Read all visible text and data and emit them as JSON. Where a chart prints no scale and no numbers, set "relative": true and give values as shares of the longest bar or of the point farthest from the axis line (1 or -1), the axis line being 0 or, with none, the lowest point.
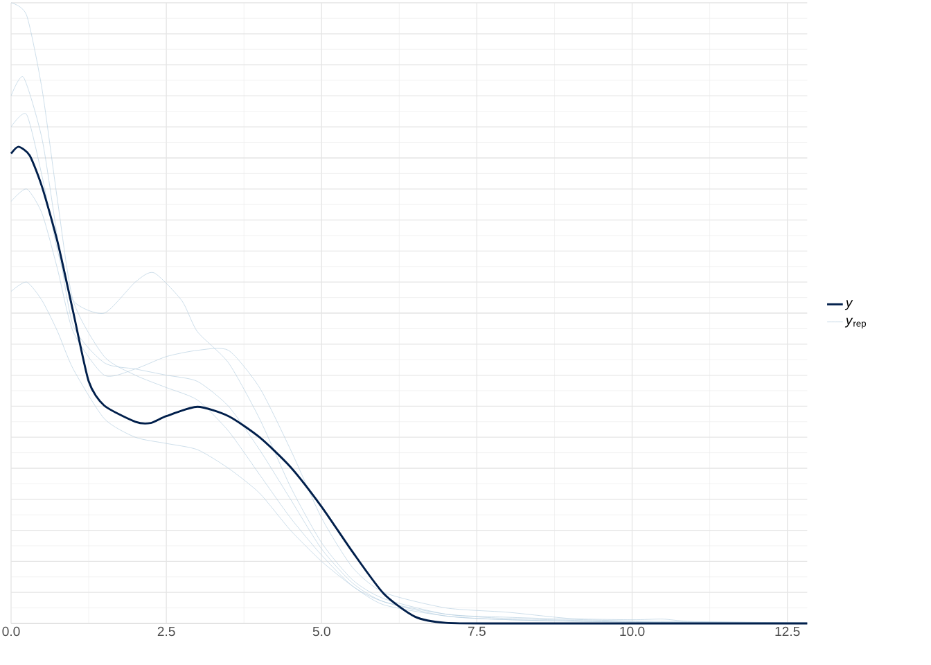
{
  "chart_data": {
    "type": "line",
    "relative": true,
    "xlim": [
      0,
      12.82
    ],
    "xticks": [
      {
        "value": 0,
        "label": "0.0"
      },
      {
        "value": 2.5,
        "label": "2.5"
      },
      {
        "value": 5,
        "label": "5.0"
      },
      {
        "value": 7.5,
        "label": "7.5"
      },
      {
        "value": 10,
        "label": "10.0"
      },
      {
        "value": 12.5,
        "label": "12.5"
      }
    ],
    "grid": true,
    "legend": "right",
    "tick_labels": "x",
    "series": [
      {
        "name": "*y*$_{rep}$",
        "color": "#b3cde0",
        "x": [
          0,
          0.25,
          0.5,
          0.75,
          1,
          1.5,
          2,
          2.5,
          3,
          3.5,
          4,
          4.5,
          5,
          5.5,
          6,
          7,
          8,
          10,
          12.82
        ],
        "values": [
          1.0,
          0.98,
          0.86,
          0.68,
          0.52,
          0.43,
          0.4,
          0.38,
          0.36,
          0.31,
          0.24,
          0.17,
          0.11,
          0.06,
          0.035,
          0.015,
          0.008,
          0.003,
          0
        ]
      },
      {
        "color": "#b3cde0",
        "x": [
          0,
          0.25,
          0.5,
          0.75,
          1,
          1.5,
          2,
          2.5,
          3,
          3.5,
          4,
          4.5,
          5,
          5.5,
          6,
          7,
          8,
          10,
          12.82
        ],
        "values": [
          0.535,
          0.55,
          0.52,
          0.47,
          0.41,
          0.33,
          0.3,
          0.29,
          0.28,
          0.25,
          0.21,
          0.15,
          0.1,
          0.06,
          0.03,
          0.012,
          0.006,
          0.002,
          0
        ]
      },
      {
        "color": "#b3cde0",
        "x": [
          0,
          0.25,
          0.5,
          0.75,
          1,
          1.5,
          2,
          2.3,
          2.75,
          3,
          3.5,
          4,
          4.5,
          5,
          5.5,
          6,
          7,
          8,
          10,
          12.82
        ],
        "values": [
          0.8,
          0.82,
          0.72,
          0.6,
          0.52,
          0.5,
          0.55,
          0.565,
          0.52,
          0.47,
          0.42,
          0.33,
          0.22,
          0.13,
          0.07,
          0.04,
          0.015,
          0.01,
          0.004,
          0.001
        ]
      },
      {
        "color": "#b3cde0",
        "x": [
          0,
          0.25,
          0.5,
          0.75,
          1,
          1.5,
          2,
          2.5,
          3,
          3.5,
          4,
          4.5,
          5,
          5.5,
          6,
          7,
          8,
          9,
          10,
          10.5,
          11,
          12.82
        ],
        "values": [
          0.68,
          0.7,
          0.66,
          0.57,
          0.47,
          0.4,
          0.41,
          0.43,
          0.44,
          0.44,
          0.38,
          0.28,
          0.17,
          0.09,
          0.05,
          0.025,
          0.018,
          0.008,
          0.006,
          0.007,
          0.003,
          0.001
        ]
      },
      {
        "color": "#b3cde0",
        "x": [
          0,
          0.2,
          0.5,
          0.75,
          1,
          1.5,
          2,
          2.5,
          3,
          3.5,
          4,
          4.5,
          5,
          5.5,
          6,
          7,
          8,
          10,
          12.82
        ],
        "values": [
          0.85,
          0.88,
          0.78,
          0.62,
          0.48,
          0.42,
          0.41,
          0.4,
          0.39,
          0.35,
          0.28,
          0.2,
          0.12,
          0.065,
          0.035,
          0.012,
          0.006,
          0.002,
          0
        ]
      },
      {
        "name": "*y*",
        "color": "#011f4b",
        "x": [
          0,
          0.12,
          0.3,
          0.5,
          0.75,
          1,
          1.25,
          1.5,
          2,
          2.25,
          2.5,
          3,
          3.5,
          4,
          4.5,
          5,
          5.5,
          6,
          6.5,
          7,
          8,
          12.82
        ],
        "values": [
          0.757,
          0.768,
          0.754,
          0.703,
          0.614,
          0.502,
          0.39,
          0.351,
          0.325,
          0.323,
          0.334,
          0.349,
          0.334,
          0.3,
          0.252,
          0.188,
          0.115,
          0.048,
          0.011,
          0.001,
          0,
          0
        ]
      }
    ]
  }
}
